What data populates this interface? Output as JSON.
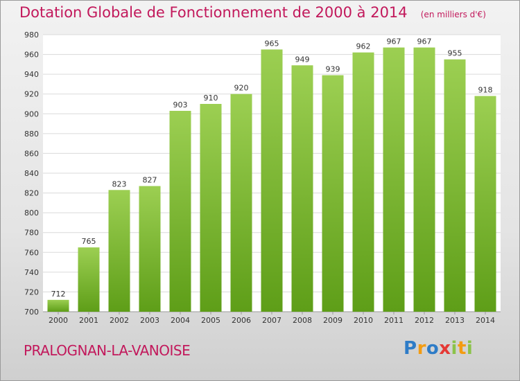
{
  "header": {
    "title": "Dotation Globale de Fonctionnement de 2000 à 2014",
    "unit": "(en milliers d'€)"
  },
  "footer": {
    "commune": "PRALOGNAN-LA-VANOISE",
    "logo_text": "Proxiti"
  },
  "colors": {
    "accent": "#c2185b",
    "bar_top": "#9ccf52",
    "bar_bottom": "#5e9e18"
  },
  "chart_data": {
    "type": "bar",
    "title": "Dotation Globale de Fonctionnement de 2000 à 2014",
    "subtitle": "(en milliers d'€)",
    "xlabel": "",
    "ylabel": "",
    "categories": [
      "2000",
      "2001",
      "2002",
      "2003",
      "2004",
      "2005",
      "2006",
      "2007",
      "2008",
      "2009",
      "2010",
      "2011",
      "2012",
      "2013",
      "2014"
    ],
    "values": [
      712,
      765,
      823,
      827,
      903,
      910,
      920,
      965,
      949,
      939,
      962,
      967,
      967,
      955,
      918
    ],
    "ylim": [
      700,
      980
    ],
    "yticks": [
      700,
      720,
      740,
      760,
      780,
      800,
      820,
      840,
      860,
      880,
      900,
      920,
      940,
      960,
      980
    ],
    "grid": true,
    "data_labels": true
  }
}
